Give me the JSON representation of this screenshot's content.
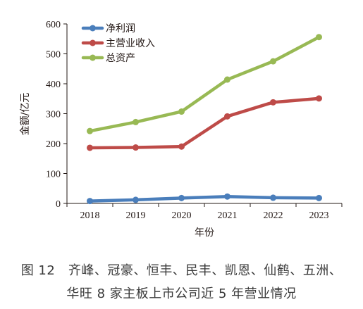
{
  "chart_data": {
    "type": "line",
    "xlabel": "年份",
    "ylabel": "金额/亿元",
    "ylim": [
      0,
      600
    ],
    "yticks": [
      0,
      100,
      200,
      300,
      400,
      500,
      600
    ],
    "x": [
      "2018",
      "2019",
      "2020",
      "2021",
      "2022",
      "2023"
    ],
    "legend_position": "top-left",
    "grid": false,
    "series": [
      {
        "name": "净利润",
        "color": "#4a7ebb",
        "values": [
          8,
          12,
          18,
          23,
          19,
          18
        ]
      },
      {
        "name": "主营业收入",
        "color": "#be4b48",
        "values": [
          186,
          187,
          190,
          291,
          338,
          351
        ]
      },
      {
        "name": "总资产",
        "color": "#98b954",
        "values": [
          242,
          272,
          307,
          414,
          475,
          556
        ]
      }
    ]
  },
  "caption": {
    "line1": "图 12　齐峰、冠豪、恒丰、民丰、凯恩、仙鹤、五洲、",
    "line2": "华旺 8 家主板上市公司近 5 年营业情况"
  }
}
